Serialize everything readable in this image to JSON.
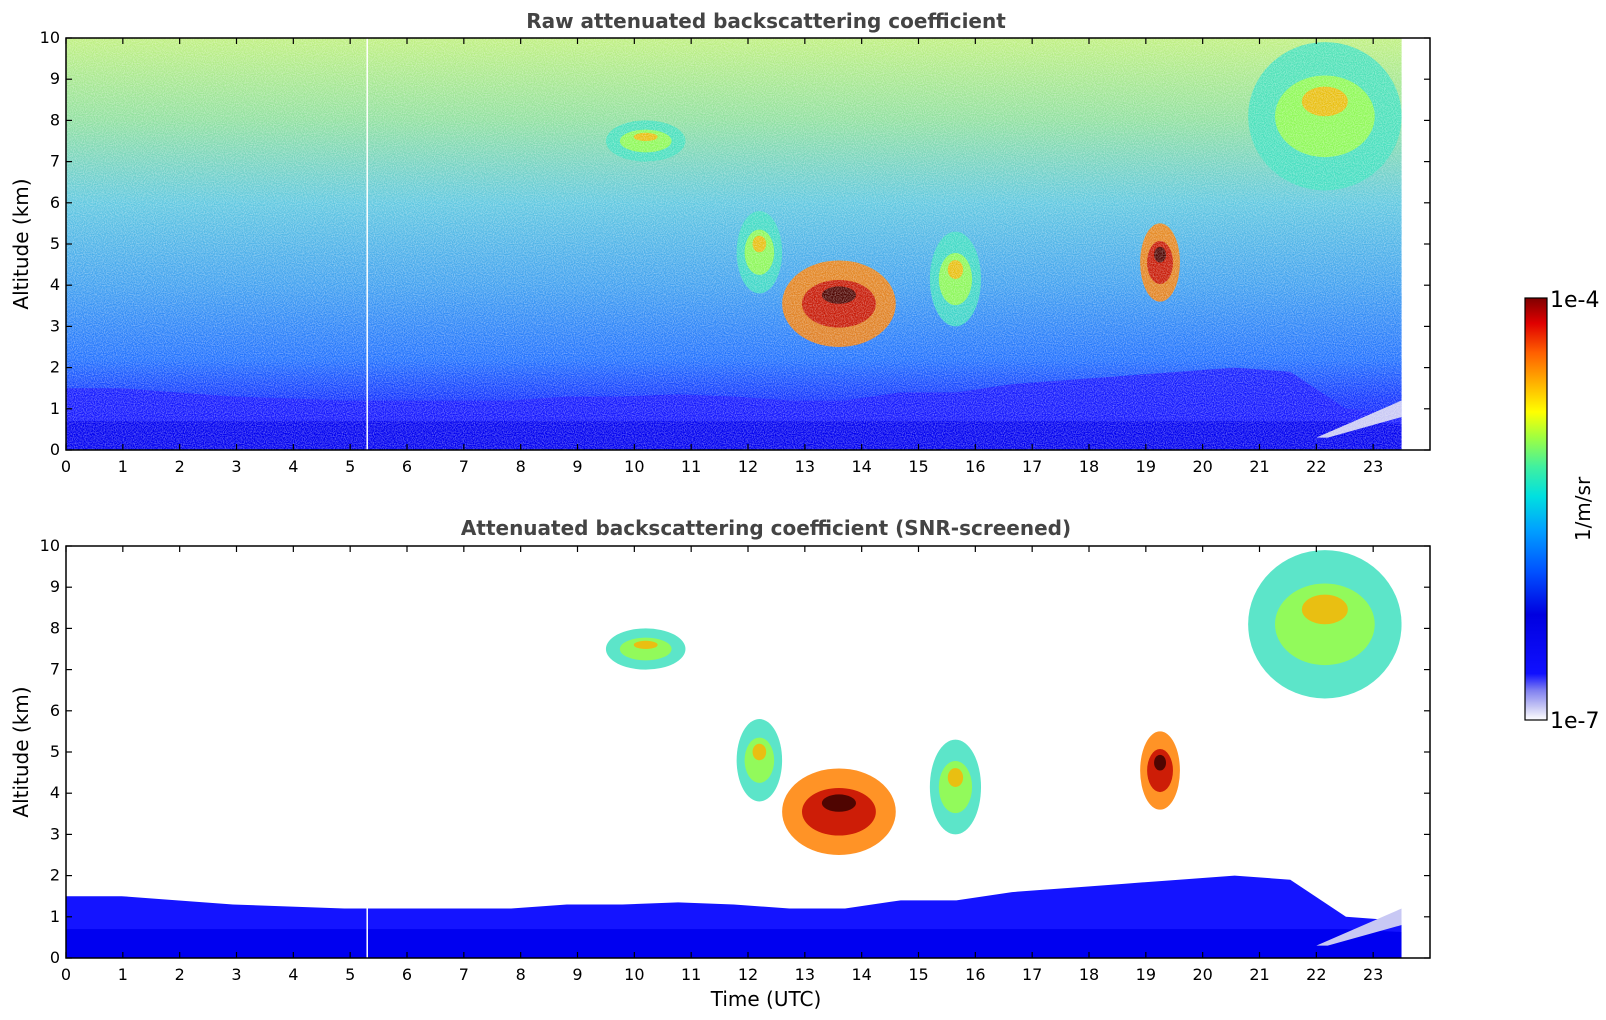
{
  "chart_data": [
    {
      "type": "heatmap",
      "title": "Raw attenuated backscattering coefficient",
      "xlabel": "",
      "ylabel": "Altitude (km)",
      "xlim": [
        0,
        24
      ],
      "ylim": [
        0,
        10
      ],
      "x_ticks": [
        "0",
        "1",
        "2",
        "3",
        "4",
        "5",
        "6",
        "7",
        "8",
        "9",
        "10",
        "11",
        "12",
        "13",
        "14",
        "15",
        "16",
        "17",
        "18",
        "19",
        "20",
        "21",
        "22",
        "23"
      ],
      "y_ticks": [
        "0",
        "1",
        "2",
        "3",
        "4",
        "5",
        "6",
        "7",
        "8",
        "9",
        "10"
      ],
      "data_end_time": 23.5,
      "features": [
        {
          "kind": "boundary_layer",
          "t_start": 0,
          "t_end": 23.5,
          "top_km": [
            1.5,
            1.5,
            1.4,
            1.3,
            1.25,
            1.2,
            1.2,
            1.2,
            1.2,
            1.3,
            1.3,
            1.35,
            1.3,
            1.2,
            1.2,
            1.4,
            1.4,
            1.6,
            1.7,
            1.8,
            1.9,
            2.0,
            1.9,
            1.0,
            0.9
          ]
        },
        {
          "kind": "cloud",
          "t": [
            11.8,
            12.6
          ],
          "alt_km": [
            3.8,
            5.8
          ],
          "intensity": "medium"
        },
        {
          "kind": "cloud",
          "t": [
            12.6,
            14.6
          ],
          "alt_km": [
            2.5,
            4.6
          ],
          "intensity": "high"
        },
        {
          "kind": "cloud",
          "t": [
            15.2,
            16.1
          ],
          "alt_km": [
            3.0,
            5.3
          ],
          "intensity": "medium"
        },
        {
          "kind": "cloud",
          "t": [
            18.9,
            19.6
          ],
          "alt_km": [
            3.6,
            5.5
          ],
          "intensity": "high"
        },
        {
          "kind": "cloud",
          "t": [
            9.5,
            10.9
          ],
          "alt_km": [
            7.0,
            8.0
          ],
          "intensity": "medium"
        },
        {
          "kind": "cloud",
          "t": [
            20.8,
            23.5
          ],
          "alt_km": [
            6.3,
            9.9
          ],
          "intensity": "medium"
        }
      ]
    },
    {
      "type": "heatmap",
      "title": "Attenuated backscattering coefficient (SNR-screened)",
      "xlabel": "Time (UTC)",
      "ylabel": "Altitude (km)",
      "xlim": [
        0,
        24
      ],
      "ylim": [
        0,
        10
      ],
      "x_ticks": [
        "0",
        "1",
        "2",
        "3",
        "4",
        "5",
        "6",
        "7",
        "8",
        "9",
        "10",
        "11",
        "12",
        "13",
        "14",
        "15",
        "16",
        "17",
        "18",
        "19",
        "20",
        "21",
        "22",
        "23"
      ],
      "y_ticks": [
        "0",
        "1",
        "2",
        "3",
        "4",
        "5",
        "6",
        "7",
        "8",
        "9",
        "10"
      ],
      "data_end_time": 23.5
    }
  ],
  "colorbar": {
    "label": "1/m/sr",
    "max_label": "1e-4",
    "min_label": "1e-7",
    "scale": "log",
    "colors": [
      "#ffffff",
      "#c8c8f4",
      "#8080f0",
      "#1010ff",
      "#0000e0",
      "#0050ff",
      "#00a0ff",
      "#00e0e0",
      "#40f0a0",
      "#a0ff40",
      "#ffff00",
      "#ffb000",
      "#ff6000",
      "#e00000",
      "#800000"
    ]
  }
}
